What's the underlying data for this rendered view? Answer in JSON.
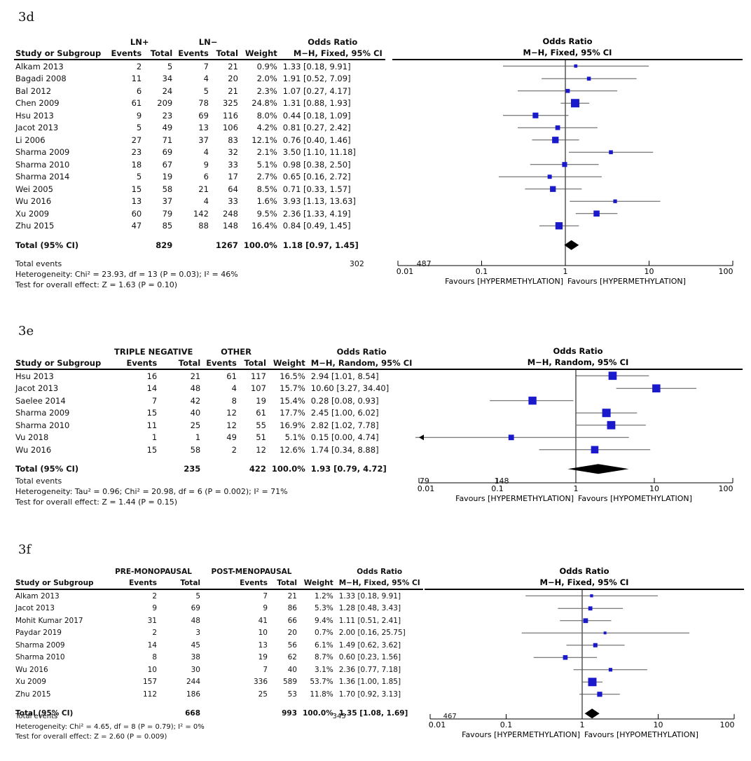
{
  "chart_data": [
    {
      "id": "3d",
      "type": "forest",
      "panel_label": "3d",
      "group1_label": "LN+",
      "group2_label": "LN−",
      "col_headers": {
        "study": "Study or Subgroup",
        "events": "Events",
        "total": "Total",
        "weight": "Weight",
        "or_line1": "Odds Ratio",
        "or_line2": "M−H, Fixed, 95% CI"
      },
      "plot_title": "Odds Ratio",
      "plot_subtitle": "M−H, Fixed, 95% CI",
      "studies": [
        {
          "name": "Alkam 2013",
          "e1": "2",
          "t1": "5",
          "e2": "7",
          "t2": "21",
          "weight": "0.9%",
          "ci_text": "1.33 [0.18, 9.91]",
          "or": 1.33,
          "lo": 0.18,
          "hi": 9.91,
          "w": 0.9
        },
        {
          "name": "Bagadi 2008",
          "e1": "11",
          "t1": "34",
          "e2": "4",
          "t2": "20",
          "weight": "2.0%",
          "ci_text": "1.91 [0.52, 7.09]",
          "or": 1.91,
          "lo": 0.52,
          "hi": 7.09,
          "w": 2.0
        },
        {
          "name": "Bal 2012",
          "e1": "6",
          "t1": "24",
          "e2": "5",
          "t2": "21",
          "weight": "2.3%",
          "ci_text": "1.07 [0.27, 4.17]",
          "or": 1.07,
          "lo": 0.27,
          "hi": 4.17,
          "w": 2.3
        },
        {
          "name": "Chen 2009",
          "e1": "61",
          "t1": "209",
          "e2": "78",
          "t2": "325",
          "weight": "24.8%",
          "ci_text": "1.31 [0.88, 1.93]",
          "or": 1.31,
          "lo": 0.88,
          "hi": 1.93,
          "w": 24.8
        },
        {
          "name": "Hsu 2013",
          "e1": "9",
          "t1": "23",
          "e2": "69",
          "t2": "116",
          "weight": "8.0%",
          "ci_text": "0.44 [0.18, 1.09]",
          "or": 0.44,
          "lo": 0.18,
          "hi": 1.09,
          "w": 8.0
        },
        {
          "name": "Jacot 2013",
          "e1": "5",
          "t1": "49",
          "e2": "13",
          "t2": "106",
          "weight": "4.2%",
          "ci_text": "0.81 [0.27, 2.42]",
          "or": 0.81,
          "lo": 0.27,
          "hi": 2.42,
          "w": 4.2
        },
        {
          "name": "Li 2006",
          "e1": "27",
          "t1": "71",
          "e2": "37",
          "t2": "83",
          "weight": "12.1%",
          "ci_text": "0.76 [0.40, 1.46]",
          "or": 0.76,
          "lo": 0.4,
          "hi": 1.46,
          "w": 12.1
        },
        {
          "name": "Sharma 2009",
          "e1": "23",
          "t1": "69",
          "e2": "4",
          "t2": "32",
          "weight": "2.1%",
          "ci_text": "3.50 [1.10, 11.18]",
          "or": 3.5,
          "lo": 1.1,
          "hi": 11.18,
          "w": 2.1
        },
        {
          "name": "Sharma 2010",
          "e1": "18",
          "t1": "67",
          "e2": "9",
          "t2": "33",
          "weight": "5.1%",
          "ci_text": "0.98 [0.38, 2.50]",
          "or": 0.98,
          "lo": 0.38,
          "hi": 2.5,
          "w": 5.1
        },
        {
          "name": "Sharma 2014",
          "e1": "5",
          "t1": "19",
          "e2": "6",
          "t2": "17",
          "weight": "2.7%",
          "ci_text": "0.65 [0.16, 2.72]",
          "or": 0.65,
          "lo": 0.16,
          "hi": 2.72,
          "w": 2.7
        },
        {
          "name": "Wei 2005",
          "e1": "15",
          "t1": "58",
          "e2": "21",
          "t2": "64",
          "weight": "8.5%",
          "ci_text": "0.71 [0.33, 1.57]",
          "or": 0.71,
          "lo": 0.33,
          "hi": 1.57,
          "w": 8.5
        },
        {
          "name": "Wu 2016",
          "e1": "13",
          "t1": "37",
          "e2": "4",
          "t2": "33",
          "weight": "1.6%",
          "ci_text": "3.93 [1.13, 13.63]",
          "or": 3.93,
          "lo": 1.13,
          "hi": 13.63,
          "w": 1.6
        },
        {
          "name": "Xu 2009",
          "e1": "60",
          "t1": "79",
          "e2": "142",
          "t2": "248",
          "weight": "9.5%",
          "ci_text": "2.36 [1.33, 4.19]",
          "or": 2.36,
          "lo": 1.33,
          "hi": 4.19,
          "w": 9.5
        },
        {
          "name": "Zhu 2015",
          "e1": "47",
          "t1": "85",
          "e2": "88",
          "t2": "148",
          "weight": "16.4%",
          "ci_text": "0.84 [0.49, 1.45]",
          "or": 0.84,
          "lo": 0.49,
          "hi": 1.45,
          "w": 16.4
        }
      ],
      "total": {
        "label": "Total (95% CI)",
        "t1": "829",
        "t2": "1267",
        "weight": "100.0%",
        "ci_text": "1.18 [0.97, 1.45]",
        "or": 1.18,
        "lo": 0.97,
        "hi": 1.45
      },
      "total_events": {
        "label": "Total events",
        "e1": "302",
        "e2": "487"
      },
      "heterogeneity": "Heterogeneity: Chi² = 23.93, df = 13 (P = 0.03); I² = 46%",
      "overall_effect": "Test for overall effect: Z = 1.63 (P = 0.10)",
      "x_scale": "log",
      "xlim": [
        0.01,
        100
      ],
      "x_ticks": [
        "0.01",
        "0.1",
        "1",
        "10",
        "100"
      ],
      "favours_left": "Favours [HYPERMETHYLATION]",
      "favours_right": "Favours [HYPERMETHYLATION]"
    },
    {
      "id": "3e",
      "type": "forest",
      "panel_label": "3e",
      "group1_label": "TRIPLE NEGATIVE",
      "group2_label": "OTHER",
      "col_headers": {
        "study": "Study or Subgroup",
        "events": "Events",
        "total": "Total",
        "weight": "Weight",
        "or_line1": "Odds Ratio",
        "or_line2": "M−H, Random, 95% CI"
      },
      "plot_title": "Odds Ratio",
      "plot_subtitle": "M−H, Random, 95% CI",
      "studies": [
        {
          "name": "Hsu 2013",
          "e1": "16",
          "t1": "21",
          "e2": "61",
          "t2": "117",
          "weight": "16.5%",
          "ci_text": "2.94 [1.01, 8.54]",
          "or": 2.94,
          "lo": 1.01,
          "hi": 8.54,
          "w": 16.5
        },
        {
          "name": "Jacot 2013",
          "e1": "14",
          "t1": "48",
          "e2": "4",
          "t2": "107",
          "weight": "15.7%",
          "ci_text": "10.60 [3.27, 34.40]",
          "or": 10.6,
          "lo": 3.27,
          "hi": 34.4,
          "w": 15.7
        },
        {
          "name": "Saelee 2014",
          "e1": "7",
          "t1": "42",
          "e2": "8",
          "t2": "19",
          "weight": "15.4%",
          "ci_text": "0.28 [0.08, 0.93]",
          "or": 0.28,
          "lo": 0.08,
          "hi": 0.93,
          "w": 15.4
        },
        {
          "name": "Sharma 2009",
          "e1": "15",
          "t1": "40",
          "e2": "12",
          "t2": "61",
          "weight": "17.7%",
          "ci_text": "2.45 [1.00, 6.02]",
          "or": 2.45,
          "lo": 1.0,
          "hi": 6.02,
          "w": 17.7
        },
        {
          "name": "Sharma 2010",
          "e1": "11",
          "t1": "25",
          "e2": "12",
          "t2": "55",
          "weight": "16.9%",
          "ci_text": "2.82 [1.02, 7.78]",
          "or": 2.82,
          "lo": 1.02,
          "hi": 7.78,
          "w": 16.9
        },
        {
          "name": "Vu 2018",
          "e1": "1",
          "t1": "1",
          "e2": "49",
          "t2": "51",
          "weight": "5.1%",
          "ci_text": "0.15 [0.00, 4.74]",
          "or": 0.15,
          "lo": 0.0001,
          "hi": 4.74,
          "w": 5.1
        },
        {
          "name": "Wu 2016",
          "e1": "15",
          "t1": "58",
          "e2": "2",
          "t2": "12",
          "weight": "12.6%",
          "ci_text": "1.74 [0.34, 8.88]",
          "or": 1.74,
          "lo": 0.34,
          "hi": 8.88,
          "w": 12.6
        }
      ],
      "total": {
        "label": "Total (95% CI)",
        "t1": "235",
        "t2": "422",
        "weight": "100.0%",
        "ci_text": "1.93 [0.79, 4.72]",
        "or": 1.93,
        "lo": 0.79,
        "hi": 4.72
      },
      "total_events": {
        "label": "Total events",
        "e1": "79",
        "e2": "148"
      },
      "heterogeneity": "Heterogeneity: Tau² = 0.96; Chi² = 20.98, df = 6 (P = 0.002); I² = 71%",
      "overall_effect": "Test for overall effect: Z = 1.44 (P = 0.15)",
      "x_scale": "log",
      "xlim": [
        0.01,
        100
      ],
      "x_ticks": [
        "0.01",
        "0.1",
        "1",
        "10",
        "100"
      ],
      "favours_left": "Favours [HYPERMETHYLATION]",
      "favours_right": "Favours [HYPOMETHYLATION]"
    },
    {
      "id": "3f",
      "type": "forest",
      "panel_label": "3f",
      "group1_label": "PRE-MONOPAUSAL",
      "group2_label": "POST-MENOPAUSAL",
      "col_headers": {
        "study": "Study or Subgroup",
        "events": "Events",
        "total": "Total",
        "weight": "Weight",
        "or_line1": "Odds Ratio",
        "or_line2": "M−H, Fixed, 95% CI"
      },
      "plot_title": "Odds Ratio",
      "plot_subtitle": "M−H, Fixed, 95% CI",
      "studies": [
        {
          "name": "Alkam 2013",
          "e1": "2",
          "t1": "5",
          "e2": "7",
          "t2": "21",
          "weight": "1.2%",
          "ci_text": "1.33 [0.18, 9.91]",
          "or": 1.33,
          "lo": 0.18,
          "hi": 9.91,
          "w": 1.2
        },
        {
          "name": "Jacot 2013",
          "e1": "9",
          "t1": "69",
          "e2": "9",
          "t2": "86",
          "weight": "5.3%",
          "ci_text": "1.28 [0.48, 3.43]",
          "or": 1.28,
          "lo": 0.48,
          "hi": 3.43,
          "w": 5.3
        },
        {
          "name": "Mohit Kumar 2017",
          "e1": "31",
          "t1": "48",
          "e2": "41",
          "t2": "66",
          "weight": "9.4%",
          "ci_text": "1.11 [0.51, 2.41]",
          "or": 1.11,
          "lo": 0.51,
          "hi": 2.41,
          "w": 9.4
        },
        {
          "name": "Paydar 2019",
          "e1": "2",
          "t1": "3",
          "e2": "10",
          "t2": "20",
          "weight": "0.7%",
          "ci_text": "2.00 [0.16, 25.75]",
          "or": 2.0,
          "lo": 0.16,
          "hi": 25.75,
          "w": 0.7
        },
        {
          "name": "Sharma 2009",
          "e1": "14",
          "t1": "45",
          "e2": "13",
          "t2": "56",
          "weight": "6.1%",
          "ci_text": "1.49 [0.62, 3.62]",
          "or": 1.49,
          "lo": 0.62,
          "hi": 3.62,
          "w": 6.1
        },
        {
          "name": "Sharma 2010",
          "e1": "8",
          "t1": "38",
          "e2": "19",
          "t2": "62",
          "weight": "8.7%",
          "ci_text": "0.60 [0.23, 1.56]",
          "or": 0.6,
          "lo": 0.23,
          "hi": 1.56,
          "w": 8.7
        },
        {
          "name": "Wu 2016",
          "e1": "10",
          "t1": "30",
          "e2": "7",
          "t2": "40",
          "weight": "3.1%",
          "ci_text": "2.36 [0.77, 7.18]",
          "or": 2.36,
          "lo": 0.77,
          "hi": 7.18,
          "w": 3.1
        },
        {
          "name": "Xu 2009",
          "e1": "157",
          "t1": "244",
          "e2": "336",
          "t2": "589",
          "weight": "53.7%",
          "ci_text": "1.36 [1.00, 1.85]",
          "or": 1.36,
          "lo": 1.0,
          "hi": 1.85,
          "w": 53.7
        },
        {
          "name": "Zhu 2015",
          "e1": "112",
          "t1": "186",
          "e2": "25",
          "t2": "53",
          "weight": "11.8%",
          "ci_text": "1.70 [0.92, 3.13]",
          "or": 1.7,
          "lo": 0.92,
          "hi": 3.13,
          "w": 11.8
        }
      ],
      "total": {
        "label": "Total (95% CI)",
        "t1": "668",
        "t2": "993",
        "weight": "100.0%",
        "ci_text": "1.35 [1.08, 1.69]",
        "or": 1.35,
        "lo": 1.08,
        "hi": 1.69
      },
      "total_events": {
        "label": "Total events",
        "e1": "345",
        "e2": "467"
      },
      "heterogeneity": "Heterogeneity: Chi² = 4.65, df = 8 (P = 0.79); I² = 0%",
      "overall_effect": "Test for overall effect: Z = 2.60 (P = 0.009)",
      "x_scale": "log",
      "xlim": [
        0.01,
        100
      ],
      "x_ticks": [
        "0.01",
        "0.1",
        "1",
        "10",
        "100"
      ],
      "favours_left": "Favours [HYPERMETHYLATION]",
      "favours_right": "Favours [HYPOMETHYLATION]"
    }
  ],
  "colors": {
    "marker": "#1a1acc",
    "ci_line": "#333333",
    "axis": "#000000",
    "diamond": "#000000"
  }
}
